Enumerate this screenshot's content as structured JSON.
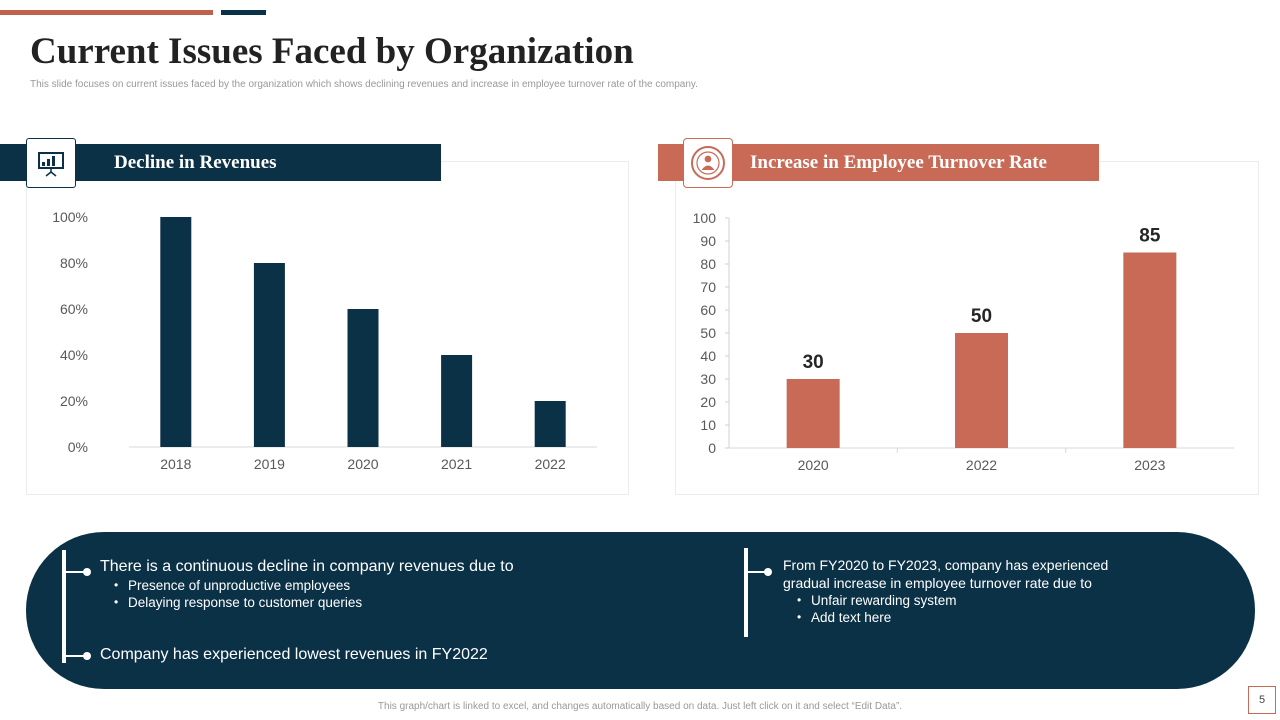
{
  "colors": {
    "navy": "#0B3147",
    "rust": "#C86A55",
    "accent_bar": "#C0614E"
  },
  "page": {
    "title": "Current Issues Faced by Organization",
    "subtitle": "This slide focuses on current issues faced by the organization which shows declining revenues and increase in employee turnover rate of the company.",
    "footer_note": "This graph/chart is linked to excel, and changes automatically based on data. Just left click on it and select “Edit Data”.",
    "page_number": "5"
  },
  "left_panel": {
    "header": "Decline in Revenues",
    "icon": "presentation-board-icon"
  },
  "right_panel": {
    "header": "Increase in Employee Turnover Rate",
    "icon": "employee-circle-icon"
  },
  "chart_data": [
    {
      "type": "bar",
      "categories": [
        "2018",
        "2019",
        "2020",
        "2021",
        "2022"
      ],
      "values": [
        100,
        80,
        60,
        40,
        20
      ],
      "ylim": [
        0,
        100
      ],
      "yticks": [
        0,
        20,
        40,
        60,
        80,
        100
      ],
      "ytick_labels": [
        "0%",
        "20%",
        "40%",
        "60%",
        "80%",
        "100%"
      ],
      "title": "",
      "xlabel": "",
      "ylabel": "",
      "grid": false,
      "data_labels": false,
      "color": "#0B3147"
    },
    {
      "type": "bar",
      "categories": [
        "2020",
        "2022",
        "2023"
      ],
      "values": [
        30,
        50,
        85
      ],
      "ylim": [
        0,
        100
      ],
      "yticks": [
        0,
        10,
        20,
        30,
        40,
        50,
        60,
        70,
        80,
        90,
        100
      ],
      "ytick_labels": [
        "0",
        "10",
        "20",
        "30",
        "40",
        "50",
        "60",
        "70",
        "80",
        "90",
        "100"
      ],
      "title": "",
      "xlabel": "",
      "ylabel": "",
      "grid": false,
      "data_labels": true,
      "color": "#C86A55"
    }
  ],
  "summary": {
    "left_point_1": "There is a continuous decline in company revenues due to",
    "left_point_1_subs": [
      "Presence of unproductive employees",
      "Delaying response to customer queries"
    ],
    "left_point_2": "Company has experienced lowest revenues in FY2022",
    "right_point_line_1": "From FY2020 to FY2023, company has experienced",
    "right_point_line_2": "gradual increase in employee turnover rate due to",
    "right_point_subs": [
      "Unfair rewarding system",
      "Add text here"
    ]
  }
}
